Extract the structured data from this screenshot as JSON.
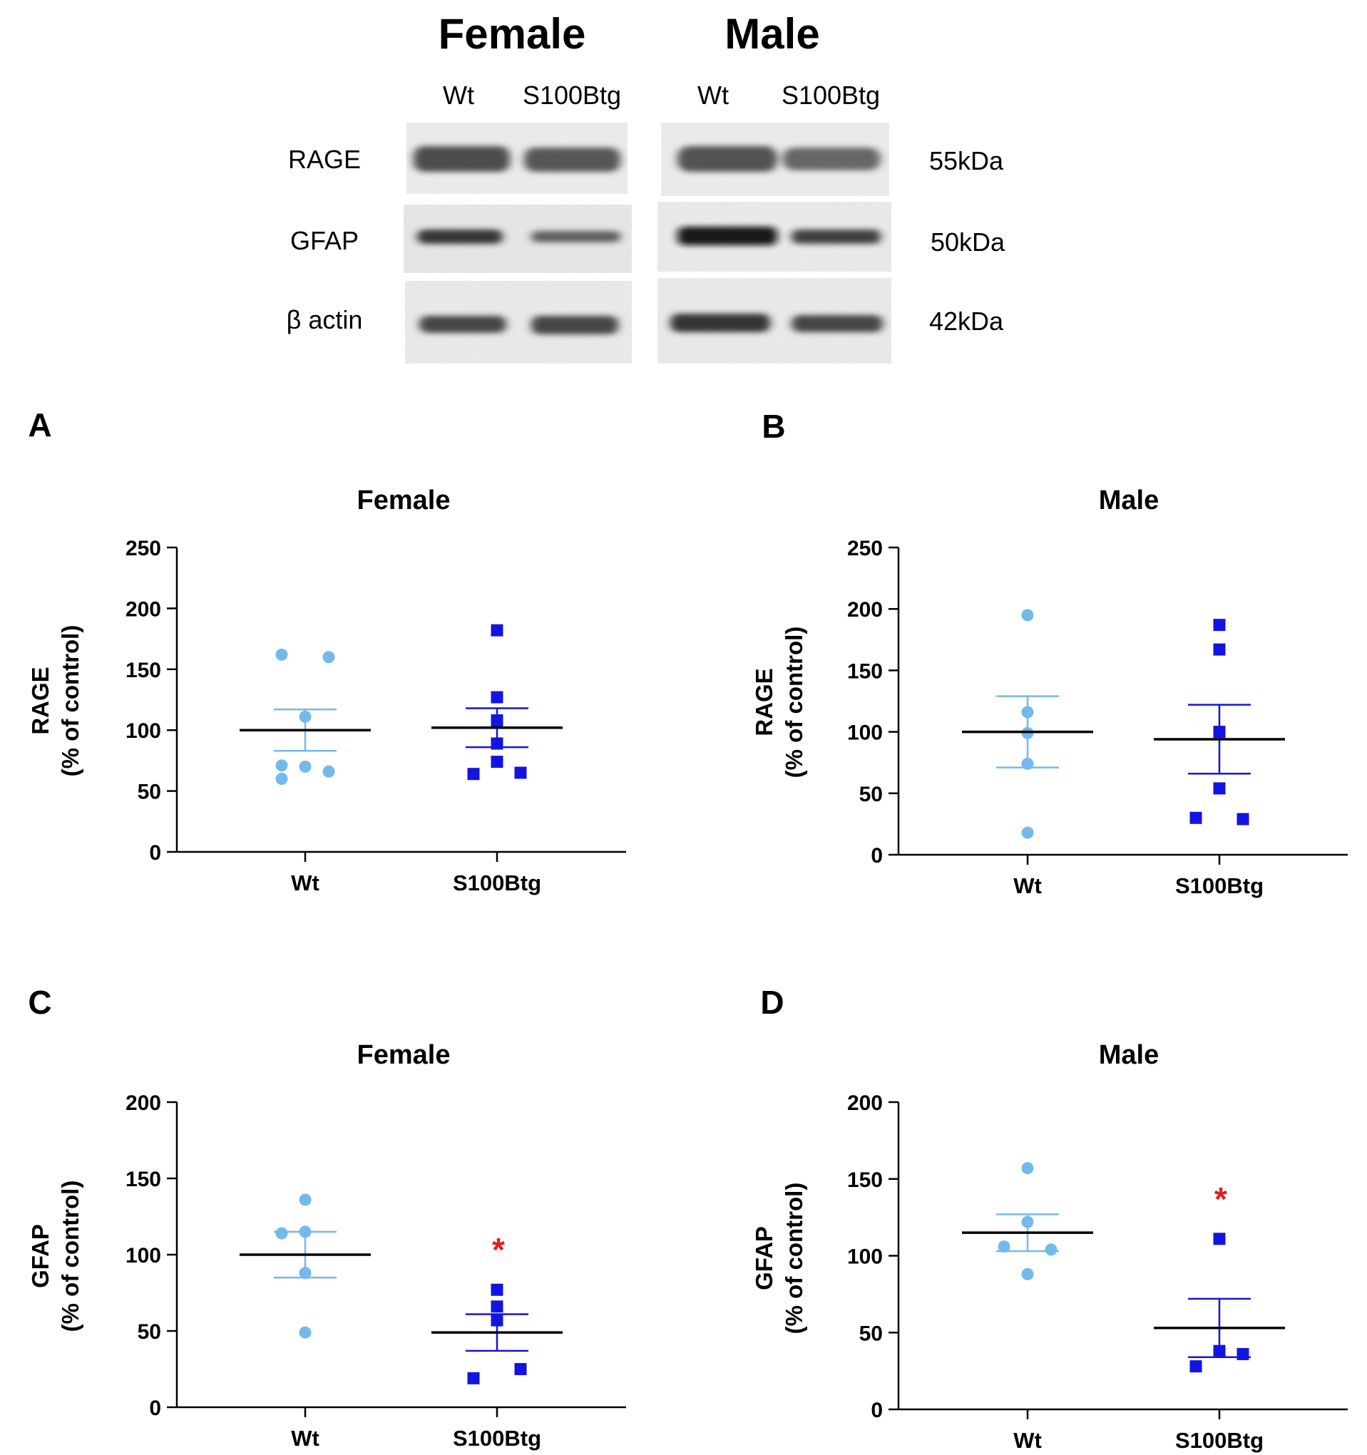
{
  "colors": {
    "wt": "#74B9EC",
    "s100b": "#1414E0",
    "mean_line": "#000000",
    "significance": "#E02020",
    "axis": "#000000"
  },
  "blot": {
    "groups": [
      {
        "title": "Female",
        "lanes": [
          "Wt",
          "S100Btg"
        ]
      },
      {
        "title": "Male",
        "lanes": [
          "Wt",
          "S100Btg"
        ]
      }
    ],
    "rows": [
      {
        "protein": "RAGE",
        "size": "55kDa"
      },
      {
        "protein": "GFAP",
        "size": "50kDa"
      },
      {
        "protein": "β actin",
        "size": "42kDa"
      }
    ]
  },
  "chart_data": [
    {
      "panel": "A",
      "type": "scatter",
      "title": "Female",
      "ylabel_line1": "RAGE",
      "ylabel_line2": "(% of control)",
      "categories": [
        "Wt",
        "S100Btg"
      ],
      "ylim": [
        0,
        250
      ],
      "yticks": [
        0,
        50,
        100,
        150,
        200,
        250
      ],
      "series": [
        {
          "name": "Wt",
          "marker": "circle",
          "values": [
            162,
            160,
            111,
            71,
            70,
            66,
            60
          ],
          "mean": 100,
          "sem": 17
        },
        {
          "name": "S100Btg",
          "marker": "square",
          "values": [
            182,
            127,
            108,
            89,
            74,
            65,
            64
          ],
          "mean": 102,
          "sem": 16
        }
      ],
      "significance": null
    },
    {
      "panel": "B",
      "type": "scatter",
      "title": "Male",
      "ylabel_line1": "RAGE",
      "ylabel_line2": "(% of control)",
      "categories": [
        "Wt",
        "S100Btg"
      ],
      "ylim": [
        0,
        250
      ],
      "yticks": [
        0,
        50,
        100,
        150,
        200,
        250
      ],
      "series": [
        {
          "name": "Wt",
          "marker": "circle",
          "values": [
            195,
            116,
            99,
            74,
            18
          ],
          "mean": 100,
          "sem": 29
        },
        {
          "name": "S100Btg",
          "marker": "square",
          "values": [
            187,
            167,
            100,
            54,
            30,
            29
          ],
          "mean": 94,
          "sem": 28
        }
      ],
      "significance": null
    },
    {
      "panel": "C",
      "type": "scatter",
      "title": "Female",
      "ylabel_line1": "GFAP",
      "ylabel_line2": "(% of control)",
      "categories": [
        "Wt",
        "S100Btg"
      ],
      "ylim": [
        0,
        200
      ],
      "yticks": [
        0,
        50,
        100,
        150,
        200
      ],
      "series": [
        {
          "name": "Wt",
          "marker": "circle",
          "values": [
            136,
            115,
            114,
            88,
            49
          ],
          "mean": 100,
          "sem": 15
        },
        {
          "name": "S100Btg",
          "marker": "square",
          "values": [
            77,
            66,
            57,
            25,
            19
          ],
          "mean": 49,
          "sem": 12
        }
      ],
      "significance": "*"
    },
    {
      "panel": "D",
      "type": "scatter",
      "title": "Male",
      "ylabel_line1": "GFAP",
      "ylabel_line2": "(% of control)",
      "categories": [
        "Wt",
        "S100Btg"
      ],
      "ylim": [
        0,
        200
      ],
      "yticks": [
        0,
        50,
        100,
        150,
        200
      ],
      "series": [
        {
          "name": "Wt",
          "marker": "circle",
          "values": [
            157,
            122,
            106,
            104,
            88
          ],
          "mean": 115,
          "sem": 12
        },
        {
          "name": "S100Btg",
          "marker": "square",
          "values": [
            111,
            38,
            36,
            28
          ],
          "mean": 53,
          "sem": 19
        }
      ],
      "significance": "*"
    }
  ]
}
